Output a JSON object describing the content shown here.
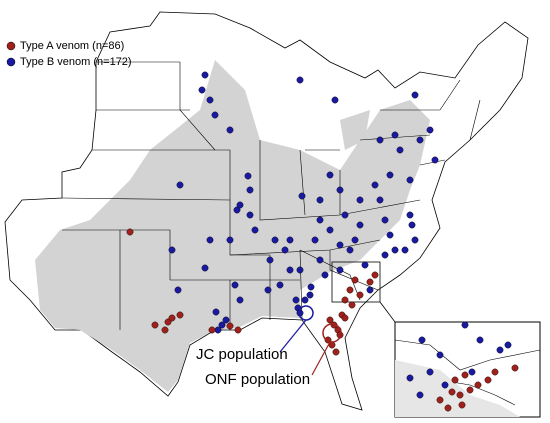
{
  "legend": [
    {
      "label": "Type A venom (n=86)",
      "color": "#a0201c"
    },
    {
      "label": "Type B venom (n=172)",
      "color": "#1a1aa0"
    }
  ],
  "annotations": {
    "jc": "JC population",
    "onf": "ONF population"
  }
}
